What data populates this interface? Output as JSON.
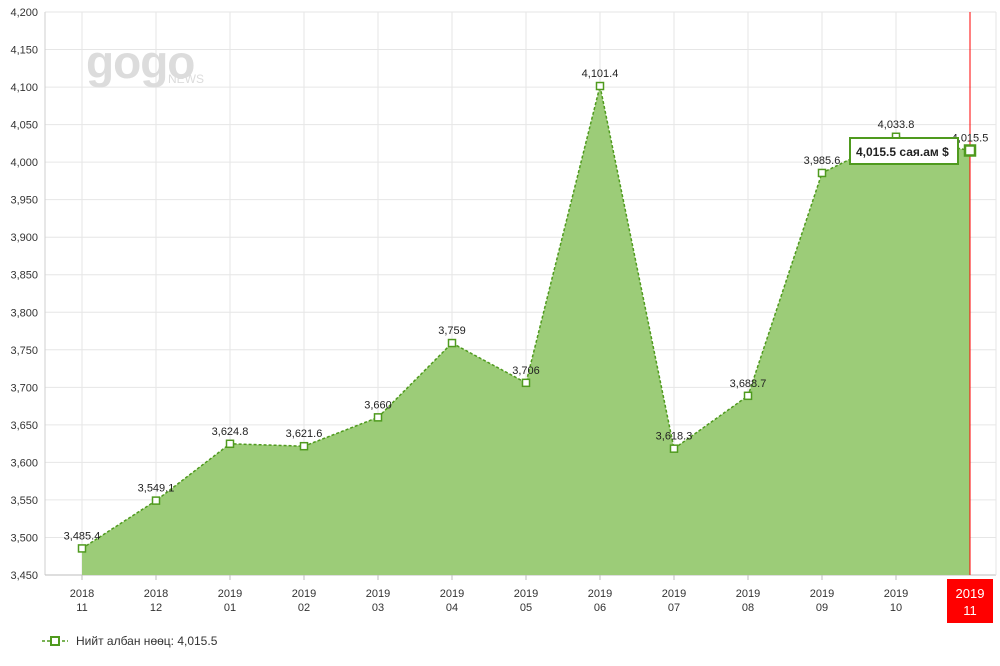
{
  "chart_data": {
    "type": "area",
    "categories": [
      {
        "year": "2018",
        "month": "11"
      },
      {
        "year": "2018",
        "month": "12"
      },
      {
        "year": "2019",
        "month": "01"
      },
      {
        "year": "2019",
        "month": "02"
      },
      {
        "year": "2019",
        "month": "03"
      },
      {
        "year": "2019",
        "month": "04"
      },
      {
        "year": "2019",
        "month": "05"
      },
      {
        "year": "2019",
        "month": "06"
      },
      {
        "year": "2019",
        "month": "07"
      },
      {
        "year": "2019",
        "month": "08"
      },
      {
        "year": "2019",
        "month": "09"
      },
      {
        "year": "2019",
        "month": "10"
      },
      {
        "year": "2019",
        "month": "11"
      }
    ],
    "series": [
      {
        "name": "Нийт албан нөөц",
        "values": [
          3485.4,
          3549.1,
          3624.8,
          3621.6,
          3660,
          3759,
          3706,
          4101.4,
          3618.3,
          3688.7,
          3985.6,
          4033.8,
          4015.5
        ],
        "labels": [
          "3,485.4",
          "3,549.1",
          "3,624.8",
          "3,621.6",
          "3,660",
          "3,759",
          "3,706",
          "4,101.4",
          "3,618.3",
          "3,688.7",
          "3,985.6",
          "4,033.8",
          "4,015.5"
        ]
      }
    ],
    "ylim": [
      3450,
      4200
    ],
    "yticks": [
      "3,450",
      "3,500",
      "3,550",
      "3,600",
      "3,650",
      "3,700",
      "3,750",
      "3,800",
      "3,850",
      "3,900",
      "3,950",
      "4,000",
      "4,050",
      "4,100",
      "4,150",
      "4,200"
    ],
    "grid": true,
    "legend_position": "bottom-left",
    "legend_text": "Нийт албан нөөц:  4,015.5",
    "highlight_index": 12,
    "tooltip_text": "4,015.5 сая.ам $",
    "colors": {
      "fill": "#9ccc78",
      "line": "#4f9a1e",
      "marker_fill": "#ffffff",
      "highlight": "#ff0000",
      "grid": "#e6e6e6"
    }
  },
  "watermark": {
    "main": "gogo",
    "sub": "NEWS"
  }
}
